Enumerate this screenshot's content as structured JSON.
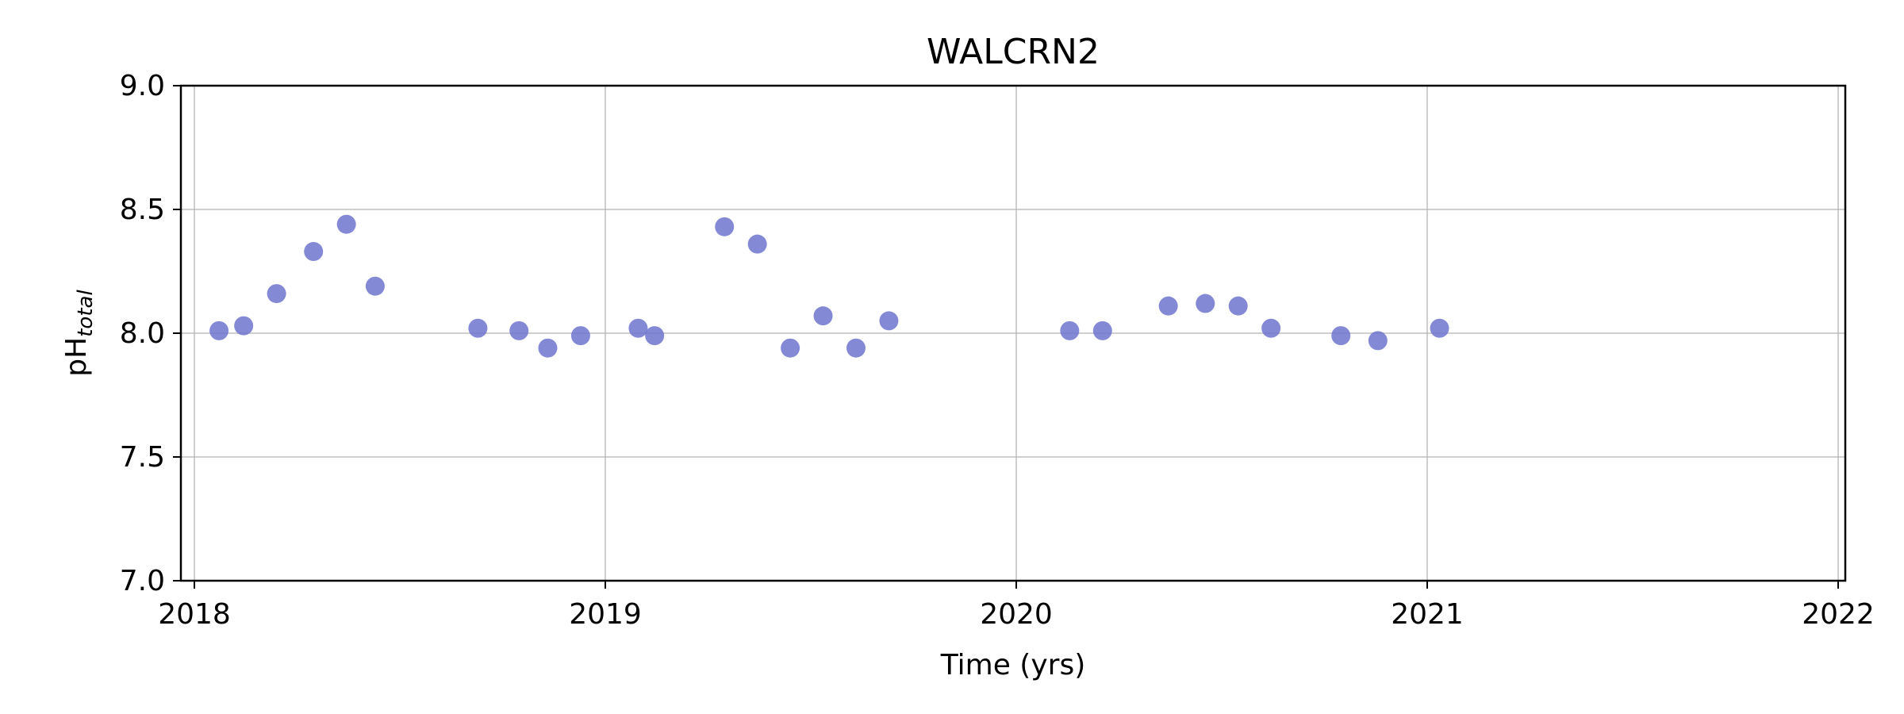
{
  "chart_data": {
    "type": "scatter",
    "title": "WALCRN2",
    "xlabel": "Time (yrs)",
    "ylabel": "pH",
    "ylabel_subscript": "total",
    "xlim": [
      2018,
      2022
    ],
    "ylim": [
      7.0,
      9.0
    ],
    "x_ticks": [
      2018,
      2019,
      2020,
      2021,
      2022
    ],
    "y_ticks": [
      "7.0",
      "7.5",
      "8.0",
      "8.5",
      "9.0"
    ],
    "grid": true,
    "marker_color": "#6f74cf",
    "series": [
      {
        "points": [
          {
            "x": 2018.06,
            "y": 8.01
          },
          {
            "x": 2018.12,
            "y": 8.03
          },
          {
            "x": 2018.2,
            "y": 8.16
          },
          {
            "x": 2018.29,
            "y": 8.33
          },
          {
            "x": 2018.37,
            "y": 8.44
          },
          {
            "x": 2018.44,
            "y": 8.19
          },
          {
            "x": 2018.69,
            "y": 8.02
          },
          {
            "x": 2018.79,
            "y": 8.01
          },
          {
            "x": 2018.86,
            "y": 7.94
          },
          {
            "x": 2018.94,
            "y": 7.99
          },
          {
            "x": 2019.08,
            "y": 8.02
          },
          {
            "x": 2019.12,
            "y": 7.99
          },
          {
            "x": 2019.29,
            "y": 8.43
          },
          {
            "x": 2019.37,
            "y": 8.36
          },
          {
            "x": 2019.45,
            "y": 7.94
          },
          {
            "x": 2019.53,
            "y": 8.07
          },
          {
            "x": 2019.61,
            "y": 7.94
          },
          {
            "x": 2019.69,
            "y": 8.05
          },
          {
            "x": 2020.13,
            "y": 8.01
          },
          {
            "x": 2020.21,
            "y": 8.01
          },
          {
            "x": 2020.37,
            "y": 8.11
          },
          {
            "x": 2020.46,
            "y": 8.12
          },
          {
            "x": 2020.54,
            "y": 8.11
          },
          {
            "x": 2020.62,
            "y": 8.02
          },
          {
            "x": 2020.79,
            "y": 7.99
          },
          {
            "x": 2020.88,
            "y": 7.97
          },
          {
            "x": 2021.03,
            "y": 8.02
          }
        ]
      }
    ]
  }
}
